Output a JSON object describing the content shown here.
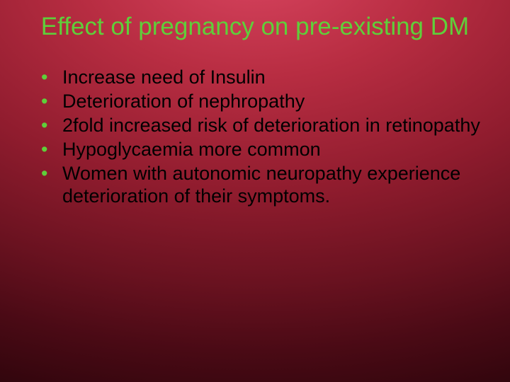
{
  "slide": {
    "title": "Effect of pregnancy on pre-existing DM",
    "title_color": "#5fcf3a",
    "bullet_color": "#5fcf3a",
    "text_color": "#000000",
    "background_gradient": {
      "type": "radial",
      "center": "50% -10%",
      "stops": [
        {
          "color": "#d94560",
          "at": "0%"
        },
        {
          "color": "#b82d42",
          "at": "25%"
        },
        {
          "color": "#901c2e",
          "at": "50%"
        },
        {
          "color": "#6a1220",
          "at": "70%"
        },
        {
          "color": "#4a0a15",
          "at": "85%"
        },
        {
          "color": "#2f050c",
          "at": "100%"
        }
      ]
    },
    "title_fontsize": 35,
    "body_fontsize": 27,
    "bullets": [
      "Increase need of Insulin",
      "Deterioration of nephropathy",
      "2fold increased risk of deterioration in retinopathy",
      "Hypoglycaemia more common",
      "Women with autonomic neuropathy experience deterioration of their symptoms."
    ]
  }
}
